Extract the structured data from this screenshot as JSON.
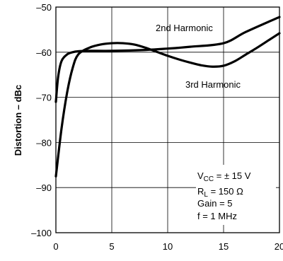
{
  "chart_data": {
    "type": "line",
    "ylabel": "Distortion – dBc",
    "xlim": [
      0,
      20
    ],
    "ylim": [
      -100,
      -50
    ],
    "x_ticks": [
      "0",
      "5",
      "10",
      "15",
      "20"
    ],
    "y_ticks": [
      "–100",
      "–90",
      "–80",
      "–70",
      "–60",
      "–50"
    ],
    "grid": true,
    "series": [
      {
        "name": "2nd Harmonic",
        "x": [
          0,
          0.2,
          0.5,
          1,
          1.5,
          2,
          3,
          5,
          8,
          10,
          12,
          15,
          17,
          20
        ],
        "y": [
          -71,
          -65.5,
          -62,
          -60.5,
          -60,
          -59.8,
          -59.7,
          -59.7,
          -59.5,
          -59.2,
          -58.8,
          -58,
          -55.5,
          -52.2
        ]
      },
      {
        "name": "3rd Harmonic",
        "x": [
          0,
          0.5,
          1,
          1.5,
          2,
          3,
          4,
          5,
          6,
          7,
          8,
          9,
          10,
          11,
          12,
          13,
          14,
          15,
          16,
          17,
          18,
          19,
          20
        ],
        "y": [
          -87.5,
          -77,
          -69,
          -63.5,
          -60.5,
          -59,
          -58.3,
          -58,
          -58,
          -58.3,
          -59,
          -59.9,
          -60.8,
          -61.6,
          -62.3,
          -62.9,
          -63.2,
          -63,
          -62,
          -60.5,
          -59,
          -57.4,
          -55.8
        ]
      }
    ],
    "conditions": {
      "vcc": {
        "main": "V",
        "sub": "CC",
        "rest": " = ± 15 V"
      },
      "rl": {
        "main": "R",
        "sub": "L",
        "rest": " = 150 Ω"
      },
      "gain": "Gain = 5",
      "freq": "f = 1 MHz"
    }
  }
}
